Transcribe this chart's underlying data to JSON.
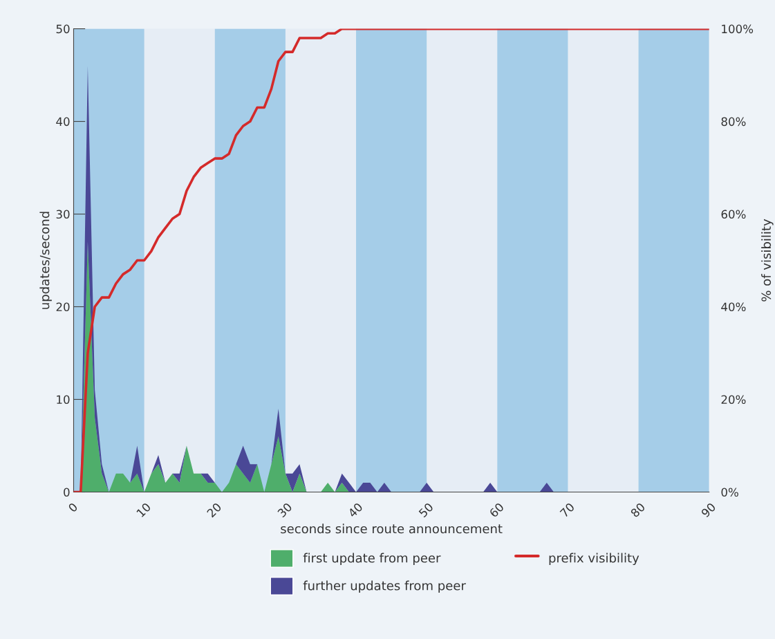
{
  "chart_data": {
    "type": "area",
    "stacked": true,
    "xlabel": "seconds since route announcement",
    "ylabel": "updates/second",
    "y2label": "% of visibility",
    "x": [
      0,
      1,
      2,
      3,
      4,
      5,
      6,
      7,
      8,
      9,
      10,
      11,
      12,
      13,
      14,
      15,
      16,
      17,
      18,
      19,
      20,
      21,
      22,
      23,
      24,
      25,
      26,
      27,
      28,
      29,
      30,
      31,
      32,
      33,
      34,
      35,
      36,
      37,
      38,
      39,
      40,
      41,
      42,
      43,
      44,
      45,
      46,
      47,
      48,
      49,
      50,
      51,
      52,
      53,
      54,
      55,
      56,
      57,
      58,
      59,
      60,
      61,
      62,
      63,
      64,
      65,
      66,
      67,
      68,
      69,
      70,
      71,
      72,
      73,
      74,
      75,
      76,
      77,
      78,
      79,
      80,
      81,
      82,
      83,
      84,
      85,
      86,
      87,
      88,
      89,
      90
    ],
    "series": [
      {
        "name": "first update from peer",
        "color": "#4fae6b",
        "values": [
          0,
          0,
          27,
          8,
          2,
          0,
          2,
          2,
          1,
          2,
          0,
          2,
          3,
          1,
          2,
          1,
          5,
          2,
          2,
          1,
          1,
          0,
          1,
          3,
          2,
          1,
          3,
          0,
          3,
          6,
          2,
          0,
          2,
          0,
          0,
          0,
          1,
          0,
          1,
          0,
          0,
          0,
          0,
          0,
          0,
          0,
          0,
          0,
          0,
          0,
          0,
          0,
          0,
          0,
          0,
          0,
          0,
          0,
          0,
          0,
          0,
          0,
          0,
          0,
          0,
          0,
          0,
          0,
          0,
          0,
          0,
          0,
          0,
          0,
          0,
          0,
          0,
          0,
          0,
          0,
          0,
          0,
          0,
          0,
          0,
          0,
          0,
          0,
          0,
          0,
          0
        ]
      },
      {
        "name": "further updates from peer",
        "color": "#4a4896",
        "values": [
          0,
          0,
          19,
          3,
          1,
          0,
          0,
          0,
          0,
          3,
          0,
          0,
          1,
          0,
          0,
          1,
          0,
          0,
          0,
          1,
          0,
          0,
          0,
          0,
          3,
          2,
          0,
          0,
          0,
          3,
          0,
          2,
          1,
          0,
          0,
          0,
          0,
          0,
          1,
          1,
          0,
          1,
          1,
          0,
          1,
          0,
          0,
          0,
          0,
          0,
          1,
          0,
          0,
          0,
          0,
          0,
          0,
          0,
          0,
          1,
          0,
          0,
          0,
          0,
          0,
          0,
          0,
          1,
          0,
          0,
          0,
          0,
          0,
          0,
          0,
          0,
          0,
          0,
          0,
          0,
          0,
          0,
          0,
          0,
          0,
          0,
          0,
          0,
          0,
          0,
          0
        ]
      },
      {
        "name": "prefix visibility",
        "type": "line",
        "axis": "y2",
        "color": "#d42a2a",
        "values": [
          0,
          0,
          30,
          40,
          42,
          42,
          45,
          47,
          48,
          50,
          50,
          52,
          55,
          57,
          59,
          60,
          65,
          68,
          70,
          71,
          72,
          72,
          73,
          77,
          79,
          80,
          83,
          83,
          87,
          93,
          95,
          95,
          98,
          98,
          98,
          98,
          99,
          99,
          100,
          100,
          100,
          100,
          100,
          100,
          100,
          100,
          100,
          100,
          100,
          100,
          100,
          100,
          100,
          100,
          100,
          100,
          100,
          100,
          100,
          100,
          100,
          100,
          100,
          100,
          100,
          100,
          100,
          100,
          100,
          100,
          100,
          100,
          100,
          100,
          100,
          100,
          100,
          100,
          100,
          100,
          100,
          100,
          100,
          100,
          100,
          100,
          100,
          100,
          100,
          100,
          100
        ]
      }
    ],
    "xlim": [
      0,
      90
    ],
    "xticks": [
      0,
      10,
      20,
      30,
      40,
      50,
      60,
      70,
      80,
      90
    ],
    "ylim": [
      0,
      50
    ],
    "yticks": [
      0,
      10,
      20,
      30,
      40,
      50
    ],
    "y2lim": [
      0,
      100
    ],
    "y2ticks": [
      {
        "value": 0,
        "label": "0%"
      },
      {
        "value": 20,
        "label": "20%"
      },
      {
        "value": 40,
        "label": "40%"
      },
      {
        "value": 60,
        "label": "60%"
      },
      {
        "value": 80,
        "label": "80%"
      },
      {
        "value": 100,
        "label": "100%"
      }
    ],
    "bands": [
      {
        "axis": "x",
        "from": 0,
        "to": 10,
        "color": "#a5cde8"
      },
      {
        "axis": "x",
        "from": 20,
        "to": 30,
        "color": "#a5cde8"
      },
      {
        "axis": "x",
        "from": 40,
        "to": 50,
        "color": "#a5cde8"
      },
      {
        "axis": "x",
        "from": 60,
        "to": 70,
        "color": "#a5cde8"
      },
      {
        "axis": "x",
        "from": 80,
        "to": 90,
        "color": "#a5cde8"
      }
    ],
    "grid": false,
    "legend": "bottom",
    "marker": "none",
    "line_style": "solid"
  }
}
